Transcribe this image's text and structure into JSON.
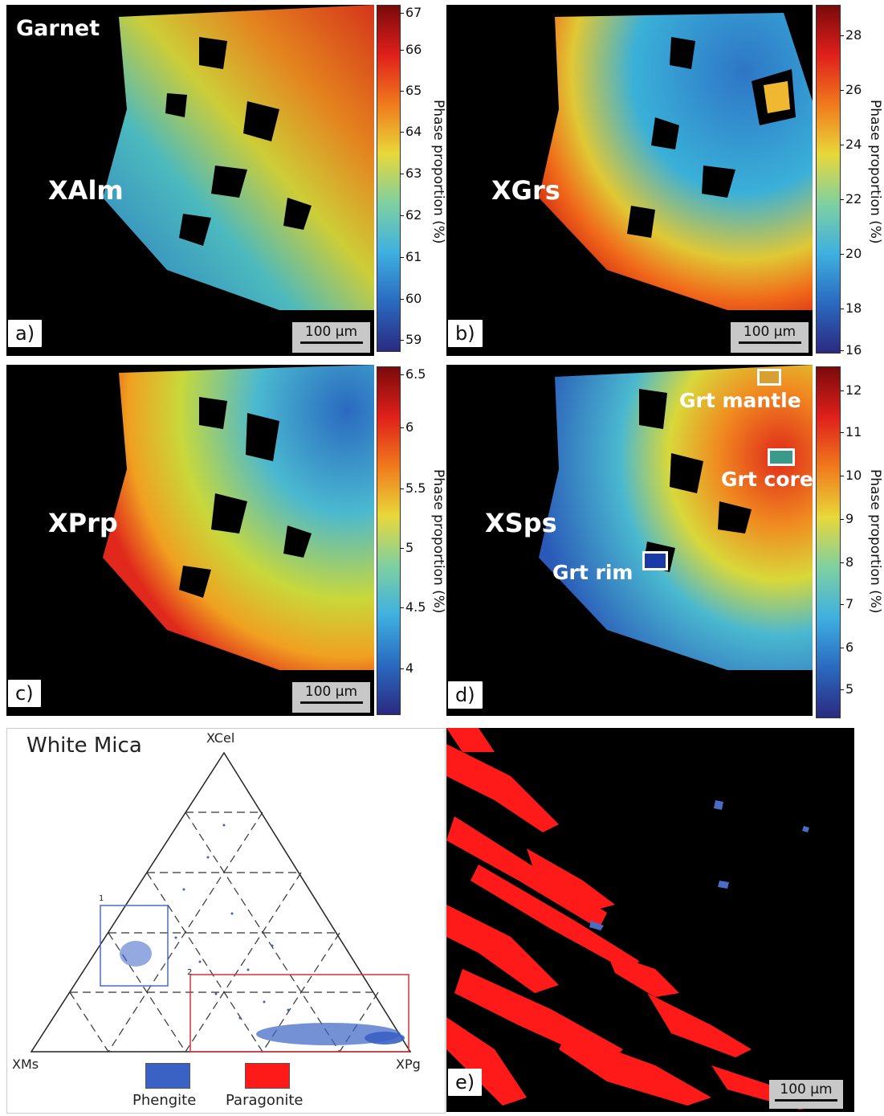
{
  "panels": {
    "a": {
      "letter": "a)",
      "group_title": "Garnet",
      "component": "XAlm",
      "scale_label": "100 µm",
      "colorbar_label": "Phase proportion (%)",
      "ticks": [
        "67",
        "66",
        "65",
        "64",
        "63",
        "62",
        "61",
        "60",
        "59"
      ]
    },
    "b": {
      "letter": "b)",
      "component": "XGrs",
      "scale_label": "100 µm",
      "colorbar_label": "Phase proportion (%)",
      "ticks": [
        "28",
        "26",
        "24",
        "22",
        "20",
        "18",
        "16"
      ]
    },
    "c": {
      "letter": "c)",
      "component": "XPrp",
      "scale_label": "100 µm",
      "colorbar_label": "Phase proportion (%)",
      "ticks": [
        "6.5",
        "6",
        "5.5",
        "5",
        "4.5",
        "4"
      ]
    },
    "d": {
      "letter": "d)",
      "component": "XSps",
      "colorbar_label": "Phase proportion (%)",
      "ticks": [
        "12",
        "11",
        "10",
        "9",
        "8",
        "7",
        "6",
        "5"
      ],
      "annotations": {
        "mantle": "Grt mantle",
        "core": "Grt core",
        "rim": "Grt rim"
      }
    },
    "e": {
      "letter": "e)",
      "scale_label": "100 µm"
    }
  },
  "ternary": {
    "title": "White Mica",
    "apex_top": "XCel",
    "apex_left": "XMs",
    "apex_right": "XPg",
    "box1_label": "1",
    "box2_label": "2",
    "legend": [
      {
        "label": "Phengite",
        "color": "#3a62c4"
      },
      {
        "label": "Paragonite",
        "color": "#ff1a1a"
      }
    ]
  },
  "colors": {
    "phengite": "#3a62c4",
    "paragonite": "#ff1a1a",
    "background": "#000000"
  }
}
